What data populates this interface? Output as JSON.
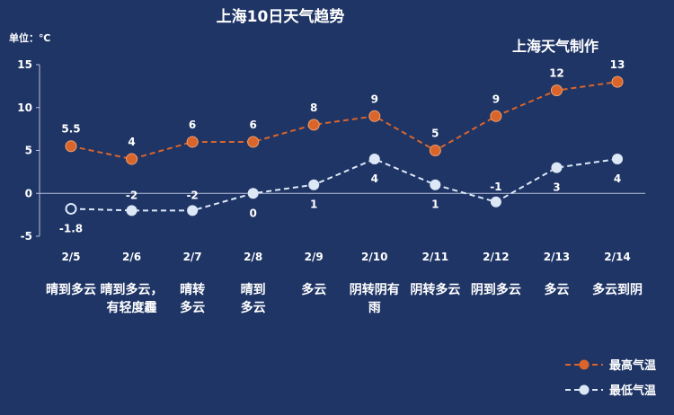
{
  "colors": {
    "background": "#1f3566",
    "high": "#d9652b",
    "low": "#dde8f7",
    "axis": "#b8c2d8",
    "text": "#ffffff"
  },
  "header": {
    "title": "上海10日天气趋势",
    "unit": "单位：℃",
    "credit": "上海天气制作"
  },
  "weather": [
    [
      "晴到多云"
    ],
    [
      "晴到多云，",
      "有轻度霾"
    ],
    [
      "晴转",
      "多云"
    ],
    [
      "晴到",
      "多云"
    ],
    [
      "多云"
    ],
    [
      "阴转阴有",
      "雨"
    ],
    [
      "阴转多云"
    ],
    [
      "阴到多云"
    ],
    [
      "多云"
    ],
    [
      "多云到阴"
    ]
  ],
  "chart_data": {
    "type": "line",
    "title": "上海10日天气趋势",
    "ylabel": "单位：℃",
    "ylim": [
      -5,
      15
    ],
    "yticks": [
      15,
      10,
      5,
      0,
      -5
    ],
    "grid": false,
    "legend": "bottom-right",
    "categories": [
      "2/5",
      "2/6",
      "2/7",
      "2/8",
      "2/9",
      "2/10",
      "2/11",
      "2/12",
      "2/13",
      "2/14"
    ],
    "series": [
      {
        "name": "最高气温",
        "values": [
          5.5,
          4,
          6,
          6,
          8,
          9,
          5,
          9,
          12,
          13
        ]
      },
      {
        "name": "最低气温",
        "values": [
          -1.8,
          -2,
          -2,
          0,
          1,
          4,
          1,
          -1,
          3,
          4
        ]
      }
    ]
  }
}
